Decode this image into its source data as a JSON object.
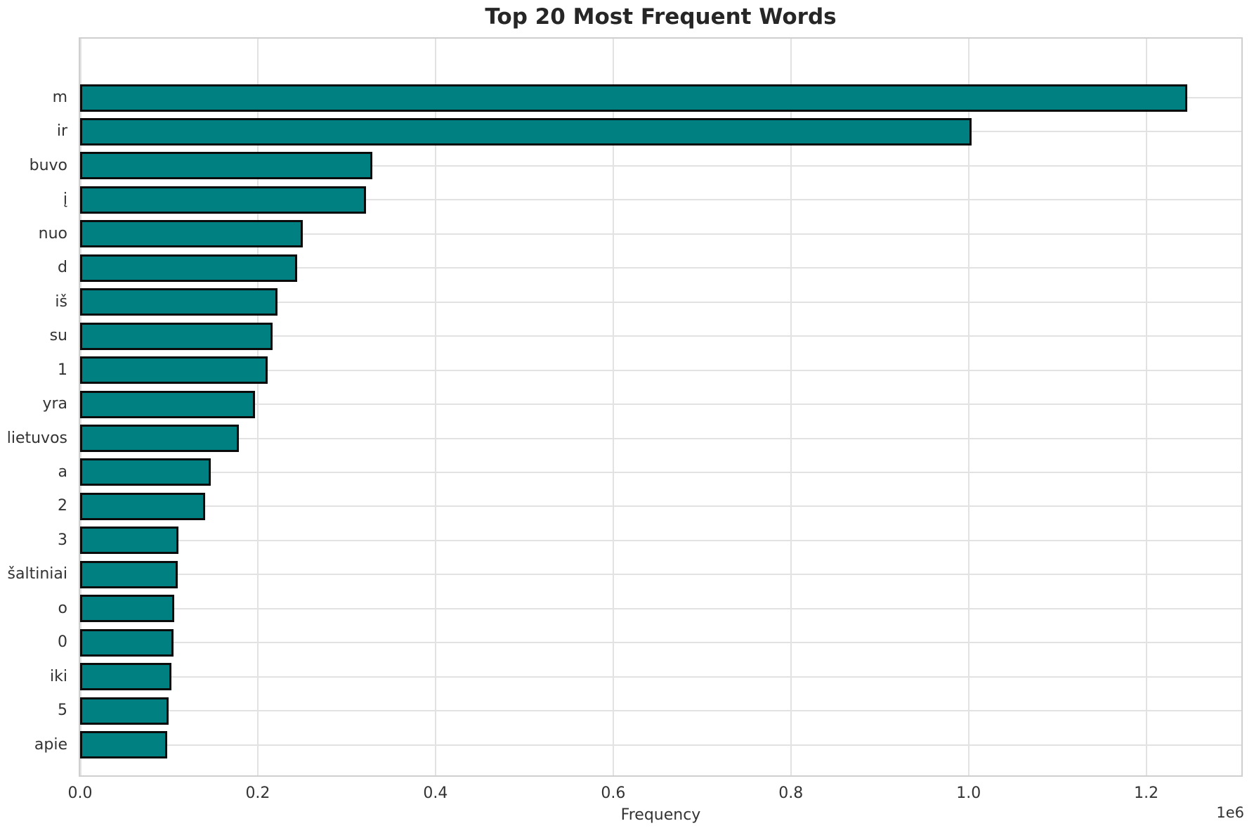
{
  "chart_data": {
    "type": "bar",
    "orientation": "horizontal",
    "title": "Top 20 Most Frequent Words",
    "xlabel": "Frequency",
    "axis_offset_label": "1e6",
    "categories": [
      "m",
      "ir",
      "buvo",
      "į",
      "nuo",
      "d",
      "iš",
      "su",
      "1",
      "yra",
      "lietuvos",
      "a",
      "2",
      "3",
      "šaltiniai",
      "o",
      "0",
      "iki",
      "5",
      "apie"
    ],
    "values": [
      1246000,
      1003000,
      329000,
      322000,
      251000,
      244000,
      222000,
      217000,
      211000,
      197000,
      179000,
      147000,
      141000,
      111000,
      110000,
      106000,
      105000,
      103000,
      100000,
      98000
    ],
    "xticks": [
      {
        "value": 0,
        "label": "0.0"
      },
      {
        "value": 200000,
        "label": "0.2"
      },
      {
        "value": 400000,
        "label": "0.4"
      },
      {
        "value": 600000,
        "label": "0.6"
      },
      {
        "value": 800000,
        "label": "0.8"
      },
      {
        "value": 1000000,
        "label": "1.0"
      },
      {
        "value": 1200000,
        "label": "1.2"
      }
    ],
    "xlim": [
      0,
      1307000
    ],
    "grid": true,
    "legend": false,
    "colors": {
      "bar_fill": "#008080",
      "bar_edge": "#0b0b0b",
      "grid": "#e2e2e2",
      "spine": "#cfcfcf",
      "title": "#262626",
      "tick_label": "#333333",
      "background": "#ffffff"
    }
  }
}
